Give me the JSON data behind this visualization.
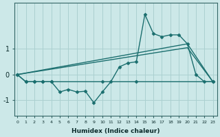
{
  "xlabel": "Humidex (Indice chaleur)",
  "ylabel": "",
  "bg_color": "#cce8e8",
  "grid_color": "#aad0d0",
  "line_color": "#1a6e6e",
  "x_ticks": [
    0,
    1,
    2,
    3,
    4,
    5,
    6,
    7,
    8,
    9,
    10,
    11,
    12,
    13,
    14,
    15,
    16,
    17,
    18,
    19,
    20,
    21,
    22,
    23
  ],
  "y_ticks": [
    -1,
    0,
    1
  ],
  "xlim": [
    -0.3,
    23.5
  ],
  "ylim": [
    -1.6,
    2.8
  ],
  "series": [
    {
      "x": [
        0,
        1,
        2,
        3,
        4,
        10,
        14,
        23
      ],
      "y": [
        0.0,
        -0.28,
        -0.28,
        -0.28,
        -0.28,
        -0.28,
        -0.28,
        -0.28
      ],
      "marker": "D",
      "markersize": 2.5,
      "linestyle": "-",
      "linewidth": 1.0
    },
    {
      "x": [
        0,
        1,
        2,
        3,
        4,
        5,
        6,
        7,
        8,
        9,
        10,
        11,
        12,
        13,
        14,
        15,
        16,
        17,
        18,
        19,
        20,
        21,
        22,
        23
      ],
      "y": [
        0.0,
        -0.28,
        -0.28,
        -0.28,
        -0.28,
        -0.68,
        -0.58,
        -0.68,
        -0.65,
        -1.1,
        -0.68,
        -0.28,
        0.3,
        0.45,
        0.5,
        2.35,
        1.6,
        1.48,
        1.55,
        1.55,
        1.2,
        0.0,
        -0.28,
        -0.28
      ],
      "marker": "D",
      "markersize": 2.5,
      "linestyle": "-",
      "linewidth": 1.0
    },
    {
      "x": [
        0,
        20,
        23
      ],
      "y": [
        0.0,
        1.2,
        -0.28
      ],
      "marker": null,
      "markersize": 0,
      "linestyle": "-",
      "linewidth": 1.0
    },
    {
      "x": [
        0,
        20,
        23
      ],
      "y": [
        0.0,
        1.05,
        -0.28
      ],
      "marker": null,
      "markersize": 0,
      "linestyle": "-",
      "linewidth": 1.0
    }
  ]
}
